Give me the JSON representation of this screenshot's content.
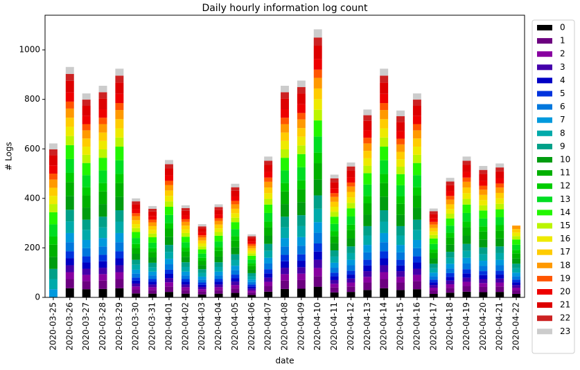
{
  "chart_data": {
    "type": "stacked_bar",
    "title": "Daily hourly information log count",
    "xlabel": "date",
    "ylabel": "# Logs",
    "categories": [
      "2020-03-25",
      "2020-03-26",
      "2020-03-27",
      "2020-03-28",
      "2020-03-29",
      "2020-03-30",
      "2020-03-31",
      "2020-04-01",
      "2020-04-02",
      "2020-04-03",
      "2020-04-04",
      "2020-04-05",
      "2020-04-06",
      "2020-04-07",
      "2020-04-08",
      "2020-04-09",
      "2020-04-10",
      "2020-04-11",
      "2020-04-12",
      "2020-04-13",
      "2020-04-14",
      "2020-04-15",
      "2020-04-16",
      "2020-04-17",
      "2020-04-18",
      "2020-04-19",
      "2020-04-20",
      "2020-04-21",
      "2020-04-22"
    ],
    "ylim": [
      0,
      1140
    ],
    "yticks": [
      0,
      200,
      400,
      600,
      800,
      1000
    ],
    "grid": false,
    "series": [
      {
        "name": "0",
        "color": "#000000",
        "values": [
          0,
          37,
          33,
          34,
          37,
          16,
          15,
          22,
          15,
          12,
          15,
          18,
          10,
          23,
          34,
          35,
          43,
          20,
          22,
          30,
          37,
          30,
          33,
          14,
          19,
          23,
          21,
          22,
          14
        ]
      },
      {
        "name": "1",
        "color": "#6c0080",
        "values": [
          0,
          37,
          33,
          34,
          37,
          16,
          15,
          22,
          15,
          12,
          15,
          18,
          10,
          23,
          34,
          35,
          43,
          20,
          22,
          30,
          37,
          30,
          33,
          14,
          19,
          23,
          21,
          22,
          14
        ]
      },
      {
        "name": "2",
        "color": "#8800a0",
        "values": [
          0,
          28,
          25,
          26,
          28,
          12,
          11,
          17,
          11,
          9,
          11,
          14,
          8,
          17,
          26,
          26,
          33,
          15,
          16,
          23,
          28,
          23,
          25,
          11,
          15,
          17,
          16,
          16,
          11
        ]
      },
      {
        "name": "3",
        "color": "#4400aa",
        "values": [
          0,
          28,
          25,
          26,
          28,
          12,
          11,
          17,
          11,
          9,
          11,
          14,
          8,
          17,
          26,
          26,
          33,
          15,
          16,
          23,
          28,
          23,
          25,
          11,
          15,
          17,
          16,
          16,
          11
        ]
      },
      {
        "name": "4",
        "color": "#0000c4",
        "values": [
          0,
          28,
          25,
          26,
          28,
          12,
          11,
          17,
          11,
          9,
          11,
          14,
          8,
          17,
          26,
          26,
          33,
          15,
          16,
          23,
          28,
          23,
          25,
          11,
          15,
          17,
          16,
          16,
          11
        ]
      },
      {
        "name": "5",
        "color": "#0033dd",
        "values": [
          0,
          28,
          25,
          26,
          28,
          12,
          11,
          17,
          11,
          9,
          11,
          14,
          8,
          17,
          26,
          26,
          33,
          15,
          16,
          23,
          28,
          23,
          25,
          11,
          15,
          17,
          16,
          16,
          11
        ]
      },
      {
        "name": "6",
        "color": "#0077dd",
        "values": [
          0,
          37,
          33,
          34,
          37,
          16,
          15,
          22,
          15,
          12,
          15,
          18,
          10,
          23,
          34,
          35,
          43,
          20,
          22,
          30,
          37,
          30,
          33,
          14,
          19,
          23,
          21,
          22,
          14
        ]
      },
      {
        "name": "7",
        "color": "#0099dd",
        "values": [
          33,
          37,
          33,
          34,
          37,
          16,
          15,
          22,
          15,
          12,
          15,
          18,
          10,
          23,
          34,
          35,
          43,
          20,
          22,
          30,
          37,
          30,
          33,
          14,
          19,
          23,
          21,
          22,
          14
        ]
      },
      {
        "name": "8",
        "color": "#00aaaa",
        "values": [
          41,
          47,
          41,
          43,
          46,
          20,
          18,
          28,
          19,
          15,
          19,
          23,
          13,
          28,
          43,
          44,
          54,
          25,
          27,
          38,
          46,
          38,
          41,
          18,
          24,
          28,
          27,
          27,
          18
        ]
      },
      {
        "name": "9",
        "color": "#00a088",
        "values": [
          41,
          47,
          41,
          43,
          46,
          20,
          18,
          28,
          19,
          15,
          19,
          23,
          13,
          28,
          43,
          44,
          54,
          25,
          27,
          38,
          46,
          38,
          41,
          18,
          24,
          28,
          27,
          27,
          18
        ]
      },
      {
        "name": "10",
        "color": "#009c10",
        "values": [
          49,
          56,
          49,
          51,
          55,
          24,
          22,
          33,
          22,
          17,
          23,
          28,
          15,
          34,
          51,
          53,
          65,
          29,
          33,
          46,
          55,
          45,
          49,
          22,
          29,
          34,
          32,
          32,
          21
        ]
      },
      {
        "name": "11",
        "color": "#00b000",
        "values": [
          49,
          56,
          49,
          51,
          55,
          24,
          22,
          33,
          22,
          17,
          23,
          28,
          15,
          34,
          51,
          53,
          65,
          29,
          33,
          46,
          55,
          45,
          49,
          22,
          29,
          34,
          32,
          32,
          21
        ]
      },
      {
        "name": "12",
        "color": "#00cc00",
        "values": [
          33,
          37,
          33,
          34,
          37,
          16,
          15,
          22,
          15,
          12,
          15,
          18,
          10,
          23,
          34,
          35,
          43,
          20,
          22,
          30,
          37,
          30,
          33,
          14,
          19,
          23,
          21,
          22,
          14
        ]
      },
      {
        "name": "13",
        "color": "#00dd22",
        "values": [
          49,
          56,
          49,
          51,
          55,
          24,
          22,
          33,
          22,
          17,
          23,
          28,
          15,
          34,
          51,
          53,
          65,
          29,
          33,
          46,
          55,
          45,
          49,
          22,
          29,
          34,
          32,
          32,
          21
        ]
      },
      {
        "name": "14",
        "color": "#22f600",
        "values": [
          49,
          56,
          49,
          51,
          55,
          24,
          22,
          33,
          22,
          17,
          23,
          28,
          15,
          34,
          51,
          53,
          65,
          29,
          33,
          46,
          55,
          45,
          49,
          22,
          29,
          34,
          32,
          32,
          21
        ]
      },
      {
        "name": "15",
        "color": "#bbf500",
        "values": [
          33,
          37,
          33,
          34,
          37,
          16,
          15,
          22,
          15,
          12,
          15,
          18,
          10,
          23,
          34,
          35,
          43,
          20,
          22,
          30,
          37,
          30,
          33,
          14,
          19,
          23,
          21,
          22,
          14
        ]
      },
      {
        "name": "16",
        "color": "#eeea00",
        "values": [
          33,
          37,
          33,
          34,
          37,
          16,
          15,
          22,
          15,
          12,
          15,
          18,
          10,
          23,
          34,
          35,
          43,
          20,
          22,
          30,
          37,
          30,
          33,
          14,
          19,
          23,
          21,
          22,
          14
        ]
      },
      {
        "name": "17",
        "color": "#ffcc00",
        "values": [
          33,
          37,
          33,
          34,
          37,
          16,
          15,
          22,
          15,
          12,
          15,
          18,
          10,
          23,
          34,
          35,
          43,
          20,
          22,
          30,
          37,
          30,
          33,
          14,
          19,
          23,
          21,
          22,
          14
        ]
      },
      {
        "name": "18",
        "color": "#ff9900",
        "values": [
          33,
          37,
          33,
          34,
          37,
          16,
          15,
          22,
          15,
          12,
          15,
          18,
          10,
          23,
          34,
          35,
          43,
          20,
          22,
          30,
          37,
          30,
          33,
          14,
          19,
          23,
          21,
          22,
          14
        ]
      },
      {
        "name": "19",
        "color": "#ff5500",
        "values": [
          24,
          28,
          25,
          26,
          28,
          12,
          11,
          17,
          11,
          9,
          11,
          14,
          8,
          17,
          26,
          26,
          33,
          15,
          16,
          23,
          28,
          23,
          25,
          11,
          15,
          17,
          16,
          16,
          0
        ]
      },
      {
        "name": "20",
        "color": "#ee0000",
        "values": [
          33,
          37,
          33,
          34,
          37,
          16,
          15,
          22,
          15,
          12,
          15,
          18,
          10,
          23,
          34,
          35,
          43,
          20,
          22,
          30,
          37,
          30,
          33,
          14,
          19,
          23,
          21,
          22,
          0
        ]
      },
      {
        "name": "21",
        "color": "#dd0000",
        "values": [
          41,
          47,
          41,
          43,
          46,
          20,
          18,
          28,
          19,
          15,
          19,
          23,
          13,
          28,
          43,
          44,
          54,
          25,
          27,
          38,
          46,
          38,
          41,
          18,
          24,
          28,
          27,
          27,
          0
        ]
      },
      {
        "name": "22",
        "color": "#cc2222",
        "values": [
          24,
          28,
          25,
          26,
          28,
          12,
          11,
          17,
          11,
          9,
          11,
          14,
          8,
          17,
          26,
          26,
          33,
          15,
          16,
          23,
          28,
          23,
          25,
          11,
          15,
          17,
          16,
          16,
          0
        ]
      },
      {
        "name": "23",
        "color": "#cccccc",
        "values": [
          24,
          28,
          25,
          26,
          28,
          12,
          11,
          17,
          11,
          9,
          11,
          14,
          8,
          17,
          26,
          26,
          33,
          15,
          16,
          23,
          28,
          23,
          25,
          11,
          15,
          17,
          16,
          16,
          0
        ]
      }
    ]
  }
}
